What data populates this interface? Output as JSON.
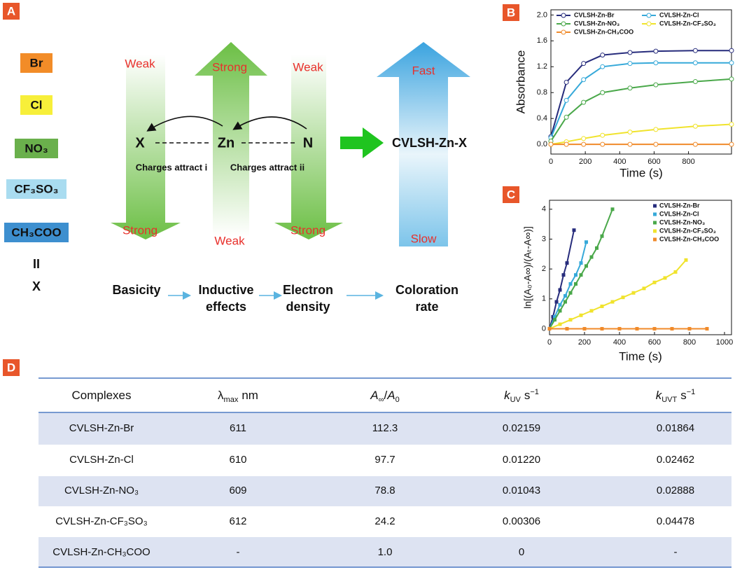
{
  "panel_labels": [
    "A",
    "B",
    "C",
    "D"
  ],
  "diagram": {
    "anions": [
      "Br",
      "Cl",
      "NO₃",
      "CF₃SO₃",
      "CH₃COO"
    ],
    "separator": "II",
    "variable": "X",
    "arrows": [
      {
        "top": "Weak",
        "bottom": "Strong"
      },
      {
        "top": "Strong",
        "bottom": "Weak"
      },
      {
        "top": "Weak",
        "bottom": "Strong"
      },
      {
        "top": "Fast",
        "bottom": "Slow"
      }
    ],
    "nodes": [
      "X",
      "Zn",
      "N"
    ],
    "attractions": [
      "Charges attract i",
      "Charges attract ii"
    ],
    "product": "CVLSH-Zn-X",
    "flow": [
      "Basicity",
      "Inductive effects",
      "Electron density",
      "Coloration rate"
    ]
  },
  "chart_data": [
    {
      "type": "line",
      "x_label": "Time (s)",
      "y_label": "Absorbance",
      "x": [
        0,
        90,
        190,
        300,
        460,
        610,
        840,
        1050
      ],
      "series": [
        {
          "name": "CVLSH-Zn-Br",
          "color": "#272c7c",
          "values": [
            0.12,
            0.96,
            1.25,
            1.38,
            1.42,
            1.44,
            1.45,
            1.45
          ]
        },
        {
          "name": "CVLSH-Zn-Cl",
          "color": "#36a9d9",
          "values": [
            0.1,
            0.68,
            1.0,
            1.2,
            1.25,
            1.26,
            1.26,
            1.26
          ]
        },
        {
          "name": "CVLSH-Zn-NO₃",
          "color": "#4aa84a",
          "values": [
            0.05,
            0.42,
            0.65,
            0.8,
            0.87,
            0.92,
            0.97,
            1.01
          ]
        },
        {
          "name": "CVLSH-Zn-CF₃SO₃",
          "color": "#f0e32c",
          "values": [
            0.0,
            0.04,
            0.09,
            0.14,
            0.19,
            0.23,
            0.28,
            0.31
          ]
        },
        {
          "name": "CVLSH-Zn-CH₃COO",
          "color": "#f08a2a",
          "values": [
            0,
            0,
            0,
            0,
            0,
            0,
            0,
            0
          ]
        }
      ],
      "markers": "circle",
      "xlim": [
        0,
        1050
      ],
      "ylim": [
        -0.15,
        2.08
      ],
      "xticks": [
        0,
        200,
        400,
        600,
        800
      ],
      "yticks": [
        {
          "value": 0,
          "label": "0.0"
        },
        {
          "value": 0.4,
          "label": "0.4"
        },
        {
          "value": 0.8,
          "label": "0.8"
        },
        {
          "value": 1.2,
          "label": "1.2"
        },
        {
          "value": 1.6,
          "label": "1.6"
        },
        {
          "value": 2.0,
          "label": "2.0"
        }
      ],
      "legend": "upper left"
    },
    {
      "type": "scatter",
      "x_label": "Time (s)",
      "y_label": "ln[(A₀-A∞)/(Aₜ-A∞)]",
      "series": [
        {
          "name": "CVLSH-Zn-Br",
          "color": "#272c7c",
          "x": [
            0,
            20,
            40,
            60,
            80,
            100,
            140
          ],
          "values": [
            0,
            0.4,
            0.9,
            1.3,
            1.8,
            2.2,
            3.3
          ]
        },
        {
          "name": "CVLSH-Zn-Cl",
          "color": "#36a9d9",
          "x": [
            0,
            30,
            60,
            90,
            120,
            150,
            180,
            210
          ],
          "values": [
            0,
            0.4,
            0.8,
            1.1,
            1.5,
            1.8,
            2.2,
            2.9
          ]
        },
        {
          "name": "CVLSH-Zn-NO₃",
          "color": "#4aa84a",
          "x": [
            0,
            30,
            60,
            90,
            120,
            150,
            180,
            210,
            240,
            270,
            300,
            360
          ],
          "values": [
            0,
            0.3,
            0.6,
            0.9,
            1.2,
            1.5,
            1.8,
            2.1,
            2.4,
            2.7,
            3.1,
            4.0
          ]
        },
        {
          "name": "CVLSH-Zn-CF₃SO₃",
          "color": "#f0e32c",
          "x": [
            0,
            60,
            120,
            180,
            240,
            300,
            360,
            420,
            480,
            540,
            600,
            660,
            720,
            780
          ],
          "values": [
            0,
            0.15,
            0.3,
            0.45,
            0.6,
            0.75,
            0.9,
            1.05,
            1.2,
            1.35,
            1.55,
            1.7,
            1.9,
            2.3
          ]
        },
        {
          "name": "CVLSH-Zn-CH₃COO",
          "color": "#f08a2a",
          "x": [
            0,
            100,
            200,
            300,
            400,
            500,
            600,
            700,
            800,
            900
          ],
          "values": [
            0,
            0,
            0,
            0,
            0,
            0,
            0,
            0,
            0,
            0
          ]
        }
      ],
      "markers": "square",
      "connect": true,
      "xlim": [
        0,
        1040
      ],
      "ylim": [
        -0.2,
        4.3
      ],
      "xticks": [
        0,
        200,
        400,
        600,
        800,
        1000
      ],
      "yticks": [
        0,
        1,
        2,
        3,
        4
      ],
      "legend": "upper right"
    }
  ],
  "table": {
    "header": [
      [
        {
          "text": "Complexes"
        }
      ],
      [
        {
          "text": "λ"
        },
        {
          "text": "max",
          "style": "sub"
        },
        {
          "text": "nm"
        }
      ],
      [
        {
          "text": "A",
          "style": "italic"
        },
        {
          "text": "∞",
          "style": "sub"
        },
        {
          "text": "/"
        },
        {
          "text": "A",
          "style": "italic"
        },
        {
          "text": "0",
          "style": "sub"
        }
      ],
      [
        {
          "text": "k",
          "style": "italic"
        },
        {
          "text": "UV",
          "style": "sub"
        },
        {
          "text": "s"
        },
        {
          "text": "−1",
          "style": "sup"
        }
      ],
      [
        {
          "text": "k",
          "style": "italic"
        },
        {
          "text": "UVT",
          "style": "sub"
        },
        {
          "text": "s"
        },
        {
          "text": "−1",
          "style": "sup"
        }
      ]
    ],
    "rows": [
      [
        "CVLSH-Zn-Br",
        "611",
        "112.3",
        "0.02159",
        "0.01864"
      ],
      [
        "CVLSH-Zn-Cl",
        "610",
        "97.7",
        "0.01220",
        "0.02462"
      ],
      [
        "CVLSH-Zn-NO₃",
        "609",
        "78.8",
        "0.01043",
        "0.02888"
      ],
      [
        "CVLSH-Zn-CF₃SO₃",
        "612",
        "24.2",
        "0.00306",
        "0.04478"
      ],
      [
        "CVLSH-Zn-CH₃COO",
        "-",
        "1.0",
        "0",
        "-"
      ]
    ]
  }
}
